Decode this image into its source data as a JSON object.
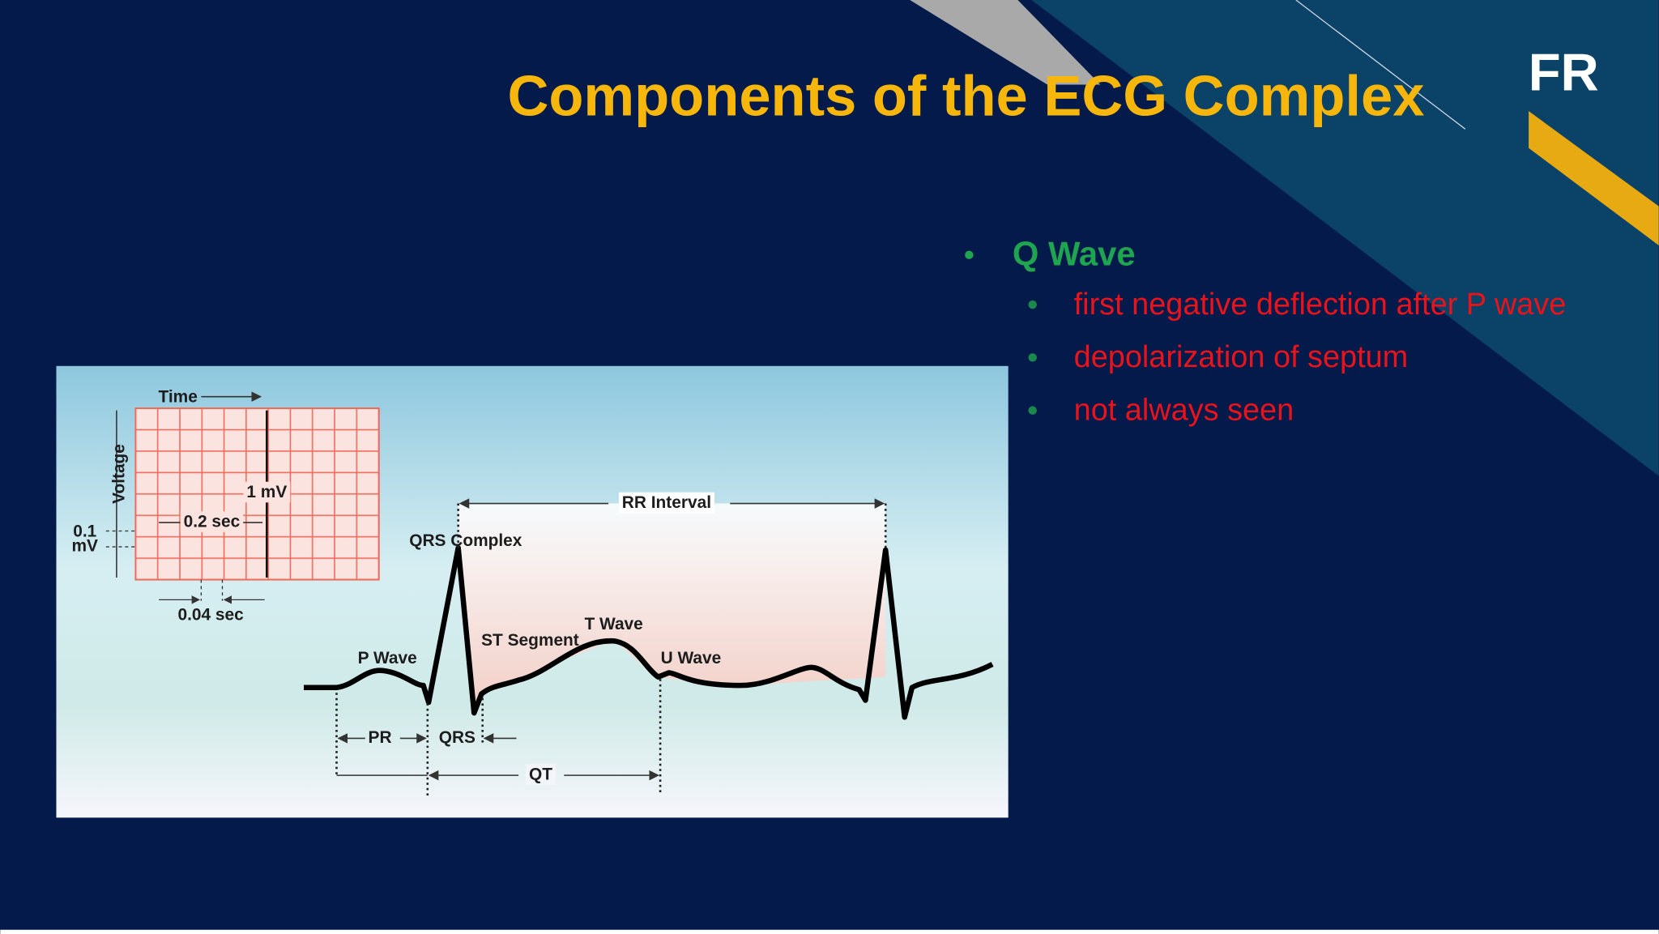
{
  "header": {
    "title": "Components of the ECG Complex",
    "logo": "FR"
  },
  "bullets": [
    {
      "text": "Q Wave",
      "children": [
        "first negative deflection after P wave",
        "depolarization of septum",
        "not always seen"
      ]
    }
  ],
  "figure": {
    "labels": {
      "time": "Time",
      "voltage": "Voltage",
      "one_mv": "1 mV",
      "two_tenths_sec": "0.2 sec",
      "tenth_mv": [
        "0.1",
        "mV"
      ],
      "four_hundredths_sec": "0.04 sec",
      "rr_interval": "RR Interval",
      "qrs_complex": "QRS Complex",
      "st_segment": "ST Segment",
      "t_wave": "T Wave",
      "p_wave": "P Wave",
      "u_wave": "U Wave",
      "pr": "PR",
      "qrs": "QRS",
      "qt": "QT"
    }
  }
}
